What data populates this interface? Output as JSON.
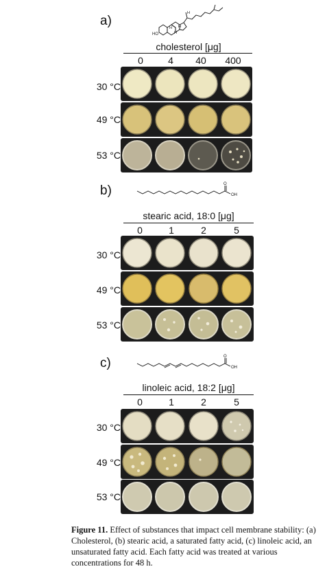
{
  "panels": [
    {
      "letter": "a)",
      "header": "cholesterol [μg]",
      "concentrations": [
        "0",
        "4",
        "40",
        "400"
      ],
      "temperatures": [
        "30 °C",
        "49 °C",
        "53 °C"
      ],
      "structure_labels": [
        "HO",
        "H",
        "H",
        "H",
        "H"
      ]
    },
    {
      "letter": "b)",
      "header": "stearic acid, 18:0 [μg]",
      "concentrations": [
        "0",
        "1",
        "2",
        "5"
      ],
      "temperatures": [
        "30 °C",
        "49 °C",
        "53 °C"
      ],
      "structure_labels": [
        "O",
        "OH"
      ]
    },
    {
      "letter": "c)",
      "header": "linoleic acid, 18:2 [μg]",
      "concentrations": [
        "0",
        "1",
        "2",
        "5"
      ],
      "temperatures": [
        "30 °C",
        "49 °C",
        "53 °C"
      ],
      "structure_labels": [
        "O",
        "OH"
      ]
    }
  ],
  "caption": {
    "label": "Figure 11.",
    "text": " Effect of substances that impact cell membrane stability: (a) Cholesterol, (b) stearic acid, a saturated fatty acid, (c) linoleic acid, an unsaturated fatty acid. Each fatty acid was treated at various concentrations for 48 h."
  }
}
